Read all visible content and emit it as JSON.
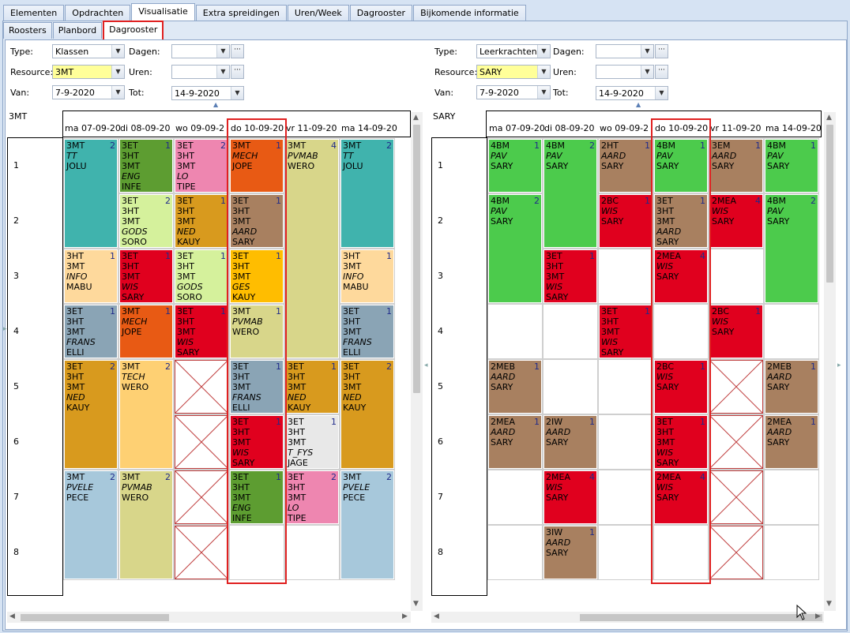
{
  "tabs": [
    "Elementen",
    "Opdrachten",
    "Visualisatie",
    "Extra spreidingen",
    "Uren/Week",
    "Dagrooster",
    "Bijkomende informatie"
  ],
  "subtabs": [
    "Roosters",
    "Planbord",
    "Dagrooster"
  ],
  "left": {
    "filters": {
      "type_label": "Type:",
      "type_value": "Klassen",
      "resource_label": "Resource:",
      "resource_value": "3MT",
      "van_label": "Van:",
      "van_value": "7-9-2020",
      "dagen_label": "Dagen:",
      "uren_label": "Uren:",
      "tot_label": "Tot:",
      "tot_value": "14-9-2020"
    },
    "resource_name": "3MT",
    "days": [
      "ma 07-09-20",
      "di 08-09-20",
      "wo 09-09-2",
      "do 10-09-20",
      "vr 11-09-20",
      "ma 14-09-20"
    ],
    "hours": [
      "1",
      "2",
      "3",
      "4",
      "5",
      "6",
      "7",
      "8"
    ],
    "lessons": [
      {
        "day": 0,
        "hour": 1,
        "span": 2,
        "color": "#40b3ad",
        "lines": [
          "3MT",
          "TT",
          "JOLU"
        ],
        "italic": [
          1
        ],
        "num": "2"
      },
      {
        "day": 0,
        "hour": 3,
        "span": 1,
        "color": "#fed99c",
        "lines": [
          "3HT",
          "3MT",
          "INFO",
          "MABU"
        ],
        "italic": [
          2
        ],
        "num": "1"
      },
      {
        "day": 0,
        "hour": 4,
        "span": 1,
        "color": "#8aa4b5",
        "lines": [
          "3ET",
          "3HT",
          "3MT",
          "FRANS",
          "ELLI"
        ],
        "italic": [
          3
        ],
        "num": "1"
      },
      {
        "day": 0,
        "hour": 5,
        "span": 2,
        "color": "#d89a1e",
        "lines": [
          "3ET",
          "3HT",
          "3MT",
          "NED",
          "KAUY"
        ],
        "italic": [
          3
        ],
        "num": "2"
      },
      {
        "day": 0,
        "hour": 7,
        "span": 2,
        "color": "#a7c8db",
        "lines": [
          "3MT",
          "PVELE",
          "PECE"
        ],
        "italic": [
          1
        ],
        "num": "2"
      },
      {
        "day": 1,
        "hour": 1,
        "span": 1,
        "color": "#5d9d31",
        "lines": [
          "3ET",
          "3HT",
          "3MT",
          "ENG",
          "INFE"
        ],
        "italic": [
          3
        ],
        "num": "1"
      },
      {
        "day": 1,
        "hour": 2,
        "span": 1,
        "color": "#d5f19c",
        "lines": [
          "3ET",
          "3HT",
          "3MT",
          "GODS",
          "SORO"
        ],
        "italic": [
          3
        ],
        "num": "2"
      },
      {
        "day": 1,
        "hour": 3,
        "span": 1,
        "color": "#e0001e",
        "lines": [
          "3ET",
          "3HT",
          "3MT",
          "WIS",
          "SARY"
        ],
        "italic": [
          3
        ],
        "num": "1"
      },
      {
        "day": 1,
        "hour": 4,
        "span": 1,
        "color": "#e85a14",
        "lines": [
          "3MT",
          "MECH",
          "JOPE"
        ],
        "italic": [
          1
        ],
        "num": "1"
      },
      {
        "day": 1,
        "hour": 5,
        "span": 2,
        "color": "#fed073",
        "lines": [
          "3MT",
          "TECH",
          "WERO"
        ],
        "italic": [
          1
        ],
        "num": "2"
      },
      {
        "day": 1,
        "hour": 7,
        "span": 2,
        "color": "#d8d68a",
        "lines": [
          "3MT",
          "PVMAB",
          "WERO"
        ],
        "italic": [
          1
        ],
        "num": "2"
      },
      {
        "day": 2,
        "hour": 1,
        "span": 1,
        "color": "#ee86b0",
        "lines": [
          "3ET",
          "3HT",
          "3MT",
          "LO",
          "TIPE"
        ],
        "italic": [
          3
        ],
        "num": "2"
      },
      {
        "day": 2,
        "hour": 2,
        "span": 1,
        "color": "#d89a1e",
        "lines": [
          "3ET",
          "3HT",
          "3MT",
          "NED",
          "KAUY"
        ],
        "italic": [
          3
        ],
        "num": "1"
      },
      {
        "day": 2,
        "hour": 3,
        "span": 1,
        "color": "#d5f19c",
        "lines": [
          "3ET",
          "3HT",
          "3MT",
          "GODS",
          "SORO"
        ],
        "italic": [
          3
        ],
        "num": "1"
      },
      {
        "day": 2,
        "hour": 4,
        "span": 1,
        "color": "#e0001e",
        "lines": [
          "3ET",
          "3HT",
          "3MT",
          "WIS",
          "SARY"
        ],
        "italic": [
          3
        ],
        "num": "1"
      },
      {
        "day": 3,
        "hour": 1,
        "span": 1,
        "color": "#e85a14",
        "lines": [
          "3MT",
          "MECH",
          "JOPE"
        ],
        "italic": [
          1
        ],
        "num": "1"
      },
      {
        "day": 3,
        "hour": 2,
        "span": 1,
        "color": "#a88060",
        "lines": [
          "3ET",
          "3HT",
          "3MT",
          "AARD",
          "SARY"
        ],
        "italic": [
          3
        ],
        "num": "1"
      },
      {
        "day": 3,
        "hour": 3,
        "span": 1,
        "color": "#ffbd00",
        "lines": [
          "3ET",
          "3HT",
          "3MT",
          "GES",
          "KAUY"
        ],
        "italic": [
          3
        ],
        "num": "1"
      },
      {
        "day": 3,
        "hour": 4,
        "span": 1,
        "color": "#d8d68a",
        "lines": [
          "3MT",
          "PVMAB",
          "WERO"
        ],
        "italic": [
          1
        ],
        "num": "1"
      },
      {
        "day": 3,
        "hour": 5,
        "span": 1,
        "color": "#8aa4b5",
        "lines": [
          "3ET",
          "3HT",
          "3MT",
          "FRANS",
          "ELLI"
        ],
        "italic": [
          3
        ],
        "num": "1"
      },
      {
        "day": 3,
        "hour": 6,
        "span": 1,
        "color": "#e0001e",
        "lines": [
          "3ET",
          "3HT",
          "3MT",
          "WIS",
          "SARY"
        ],
        "italic": [
          3
        ],
        "num": "1"
      },
      {
        "day": 3,
        "hour": 7,
        "span": 1,
        "color": "#5d9d31",
        "lines": [
          "3ET",
          "3HT",
          "3MT",
          "ENG",
          "INFE"
        ],
        "italic": [
          3
        ],
        "num": "1"
      },
      {
        "day": 4,
        "hour": 1,
        "span": 4,
        "color": "#d8d68a",
        "lines": [
          "3MT",
          "PVMAB",
          "WERO"
        ],
        "italic": [
          1
        ],
        "num": "4"
      },
      {
        "day": 4,
        "hour": 5,
        "span": 1,
        "color": "#d89a1e",
        "lines": [
          "3ET",
          "3HT",
          "3MT",
          "NED",
          "KAUY"
        ],
        "italic": [
          3
        ],
        "num": "1"
      },
      {
        "day": 4,
        "hour": 6,
        "span": 1,
        "color": "#e8e8e8",
        "lines": [
          "3ET",
          "3HT",
          "3MT",
          "T_FYS",
          "JAGE"
        ],
        "italic": [
          3
        ],
        "num": "1"
      },
      {
        "day": 4,
        "hour": 7,
        "span": 1,
        "color": "#ee86b0",
        "lines": [
          "3ET",
          "3HT",
          "3MT",
          "LO",
          "TIPE"
        ],
        "italic": [
          3
        ],
        "num": "2"
      },
      {
        "day": 5,
        "hour": 1,
        "span": 2,
        "color": "#40b3ad",
        "lines": [
          "3MT",
          "TT",
          "JOLU"
        ],
        "italic": [
          1
        ],
        "num": "2"
      },
      {
        "day": 5,
        "hour": 3,
        "span": 1,
        "color": "#fed99c",
        "lines": [
          "3HT",
          "3MT",
          "INFO",
          "MABU"
        ],
        "italic": [
          2
        ],
        "num": "1"
      },
      {
        "day": 5,
        "hour": 4,
        "span": 1,
        "color": "#8aa4b5",
        "lines": [
          "3ET",
          "3HT",
          "3MT",
          "FRANS",
          "ELLI"
        ],
        "italic": [
          3
        ],
        "num": "1"
      },
      {
        "day": 5,
        "hour": 5,
        "span": 2,
        "color": "#d89a1e",
        "lines": [
          "3ET",
          "3HT",
          "3MT",
          "NED",
          "KAUY"
        ],
        "italic": [
          3
        ],
        "num": "2"
      },
      {
        "day": 5,
        "hour": 7,
        "span": 2,
        "color": "#a7c8db",
        "lines": [
          "3MT",
          "PVELE",
          "PECE"
        ],
        "italic": [
          1
        ],
        "num": "2"
      }
    ],
    "blocked": [
      {
        "day": 2,
        "hour": 5
      },
      {
        "day": 2,
        "hour": 6
      },
      {
        "day": 2,
        "hour": 7
      },
      {
        "day": 2,
        "hour": 8
      }
    ]
  },
  "right": {
    "filters": {
      "type_label": "Type:",
      "type_value": "Leerkrachten",
      "resource_label": "Resource:",
      "resource_value": "SARY",
      "van_label": "Van:",
      "van_value": "7-9-2020",
      "dagen_label": "Dagen:",
      "uren_label": "Uren:",
      "tot_label": "Tot:",
      "tot_value": "14-9-2020"
    },
    "resource_name": "SARY",
    "days": [
      "ma 07-09-20",
      "di 08-09-20",
      "wo 09-09-2",
      "do 10-09-20",
      "vr 11-09-20",
      "ma 14-09-20"
    ],
    "hours": [
      "1",
      "2",
      "3",
      "4",
      "5",
      "6",
      "7",
      "8"
    ],
    "lessons": [
      {
        "day": 0,
        "hour": 1,
        "span": 1,
        "color": "#4ccb4c",
        "lines": [
          "4BM",
          "PAV",
          "SARY"
        ],
        "italic": [
          1
        ],
        "num": "1"
      },
      {
        "day": 0,
        "hour": 2,
        "span": 2,
        "color": "#4ccb4c",
        "lines": [
          "4BM",
          "PAV",
          "SARY"
        ],
        "italic": [
          1
        ],
        "num": "2"
      },
      {
        "day": 0,
        "hour": 5,
        "span": 1,
        "color": "#a88060",
        "lines": [
          "2MEB",
          "AARD",
          "SARY"
        ],
        "italic": [
          1
        ],
        "num": "1"
      },
      {
        "day": 0,
        "hour": 6,
        "span": 1,
        "color": "#a88060",
        "lines": [
          "2MEA",
          "AARD",
          "SARY"
        ],
        "italic": [
          1
        ],
        "num": "1"
      },
      {
        "day": 1,
        "hour": 1,
        "span": 2,
        "color": "#4ccb4c",
        "lines": [
          "4BM",
          "PAV",
          "SARY"
        ],
        "italic": [
          1
        ],
        "num": "2"
      },
      {
        "day": 1,
        "hour": 3,
        "span": 1,
        "color": "#e0001e",
        "lines": [
          "3ET",
          "3HT",
          "3MT",
          "WIS",
          "SARY"
        ],
        "italic": [
          3
        ],
        "num": "1"
      },
      {
        "day": 1,
        "hour": 6,
        "span": 1,
        "color": "#a88060",
        "lines": [
          "2IW",
          "AARD",
          "SARY"
        ],
        "italic": [
          1
        ],
        "num": "1"
      },
      {
        "day": 1,
        "hour": 7,
        "span": 1,
        "color": "#e0001e",
        "lines": [
          "2MEA",
          "WIS",
          "SARY"
        ],
        "italic": [
          1
        ],
        "num": "4"
      },
      {
        "day": 1,
        "hour": 8,
        "span": 1,
        "color": "#a88060",
        "lines": [
          "3IW",
          "AARD",
          "SARY"
        ],
        "italic": [
          1
        ],
        "num": "1"
      },
      {
        "day": 2,
        "hour": 1,
        "span": 1,
        "color": "#a88060",
        "lines": [
          "2HT",
          "AARD",
          "SARY"
        ],
        "italic": [
          1
        ],
        "num": "1"
      },
      {
        "day": 2,
        "hour": 2,
        "span": 1,
        "color": "#e0001e",
        "lines": [
          "2BC",
          "WIS",
          "SARY"
        ],
        "italic": [
          1
        ],
        "num": "1"
      },
      {
        "day": 2,
        "hour": 4,
        "span": 1,
        "color": "#e0001e",
        "lines": [
          "3ET",
          "3HT",
          "3MT",
          "WIS",
          "SARY"
        ],
        "italic": [
          3
        ],
        "num": "1"
      },
      {
        "day": 3,
        "hour": 1,
        "span": 1,
        "color": "#4ccb4c",
        "lines": [
          "4BM",
          "PAV",
          "SARY"
        ],
        "italic": [
          1
        ],
        "num": "1"
      },
      {
        "day": 3,
        "hour": 2,
        "span": 1,
        "color": "#a88060",
        "lines": [
          "3ET",
          "3HT",
          "3MT",
          "AARD",
          "SARY"
        ],
        "italic": [
          3
        ],
        "num": "1"
      },
      {
        "day": 3,
        "hour": 3,
        "span": 1,
        "color": "#e0001e",
        "lines": [
          "2MEA",
          "WIS",
          "SARY"
        ],
        "italic": [
          1
        ],
        "num": "4"
      },
      {
        "day": 3,
        "hour": 5,
        "span": 1,
        "color": "#e0001e",
        "lines": [
          "2BC",
          "WIS",
          "SARY"
        ],
        "italic": [
          1
        ],
        "num": "1"
      },
      {
        "day": 3,
        "hour": 6,
        "span": 1,
        "color": "#e0001e",
        "lines": [
          "3ET",
          "3HT",
          "3MT",
          "WIS",
          "SARY"
        ],
        "italic": [
          3
        ],
        "num": "1"
      },
      {
        "day": 3,
        "hour": 7,
        "span": 1,
        "color": "#e0001e",
        "lines": [
          "2MEA",
          "WIS",
          "SARY"
        ],
        "italic": [
          1
        ],
        "num": "4"
      },
      {
        "day": 4,
        "hour": 1,
        "span": 1,
        "color": "#a88060",
        "lines": [
          "3EM",
          "AARD",
          "SARY"
        ],
        "italic": [
          1
        ],
        "num": "1"
      },
      {
        "day": 4,
        "hour": 2,
        "span": 1,
        "color": "#e0001e",
        "lines": [
          "2MEA",
          "WIS",
          "SARY"
        ],
        "italic": [
          1
        ],
        "num": "4"
      },
      {
        "day": 4,
        "hour": 4,
        "span": 1,
        "color": "#e0001e",
        "lines": [
          "2BC",
          "WIS",
          "SARY"
        ],
        "italic": [
          1
        ],
        "num": "1"
      },
      {
        "day": 5,
        "hour": 1,
        "span": 1,
        "color": "#4ccb4c",
        "lines": [
          "4BM",
          "PAV",
          "SARY"
        ],
        "italic": [
          1
        ],
        "num": "1"
      },
      {
        "day": 5,
        "hour": 2,
        "span": 2,
        "color": "#4ccb4c",
        "lines": [
          "4BM",
          "PAV",
          "SARY"
        ],
        "italic": [
          1
        ],
        "num": "2"
      },
      {
        "day": 5,
        "hour": 5,
        "span": 1,
        "color": "#a88060",
        "lines": [
          "2MEB",
          "AARD",
          "SARY"
        ],
        "italic": [
          1
        ],
        "num": "1"
      },
      {
        "day": 5,
        "hour": 6,
        "span": 1,
        "color": "#a88060",
        "lines": [
          "2MEA",
          "AARD",
          "SARY"
        ],
        "italic": [
          1
        ],
        "num": "1"
      }
    ],
    "blocked": [
      {
        "day": 4,
        "hour": 5
      },
      {
        "day": 4,
        "hour": 6
      },
      {
        "day": 4,
        "hour": 7
      },
      {
        "day": 4,
        "hour": 8
      }
    ]
  }
}
